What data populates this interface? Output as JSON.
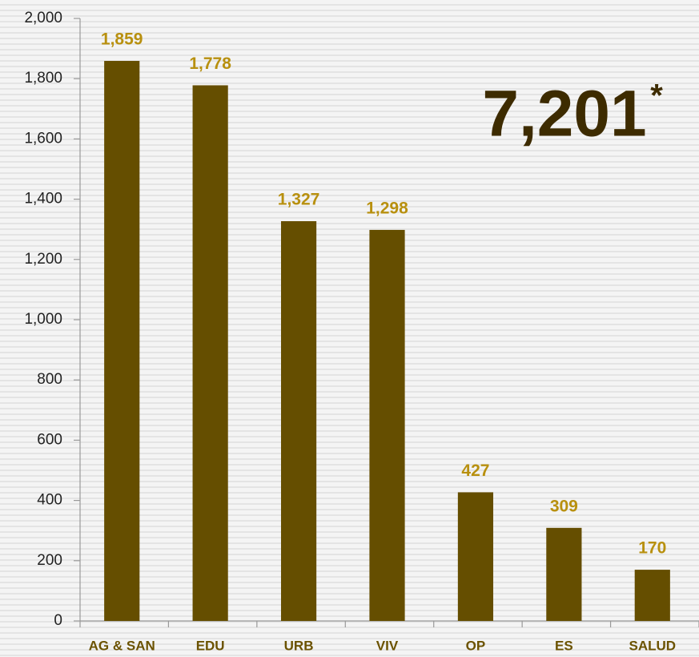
{
  "chart_data": {
    "type": "bar",
    "categories": [
      "AG & SAN",
      "EDU",
      "URB",
      "VIV",
      "OP",
      "ES",
      "SALUD"
    ],
    "values": [
      1859,
      1778,
      1327,
      1298,
      427,
      309,
      170
    ],
    "value_labels": [
      "1,859",
      "1,778",
      "1,327",
      "1,298",
      "427",
      "309",
      "170"
    ],
    "color": "#654e00",
    "ylim": [
      0,
      2000
    ],
    "yticks": [
      0,
      200,
      400,
      600,
      800,
      {
        "value": 1000,
        "label": "1,000"
      },
      {
        "value": 1200,
        "label": "1,200"
      },
      {
        "value": 1400,
        "label": "1,400"
      },
      {
        "value": 1600,
        "label": "1,600"
      },
      {
        "value": 1800,
        "label": "1,800"
      },
      {
        "value": 2000,
        "label": "2,000"
      }
    ],
    "annotations": {
      "total": "7,201",
      "note": "*"
    }
  }
}
